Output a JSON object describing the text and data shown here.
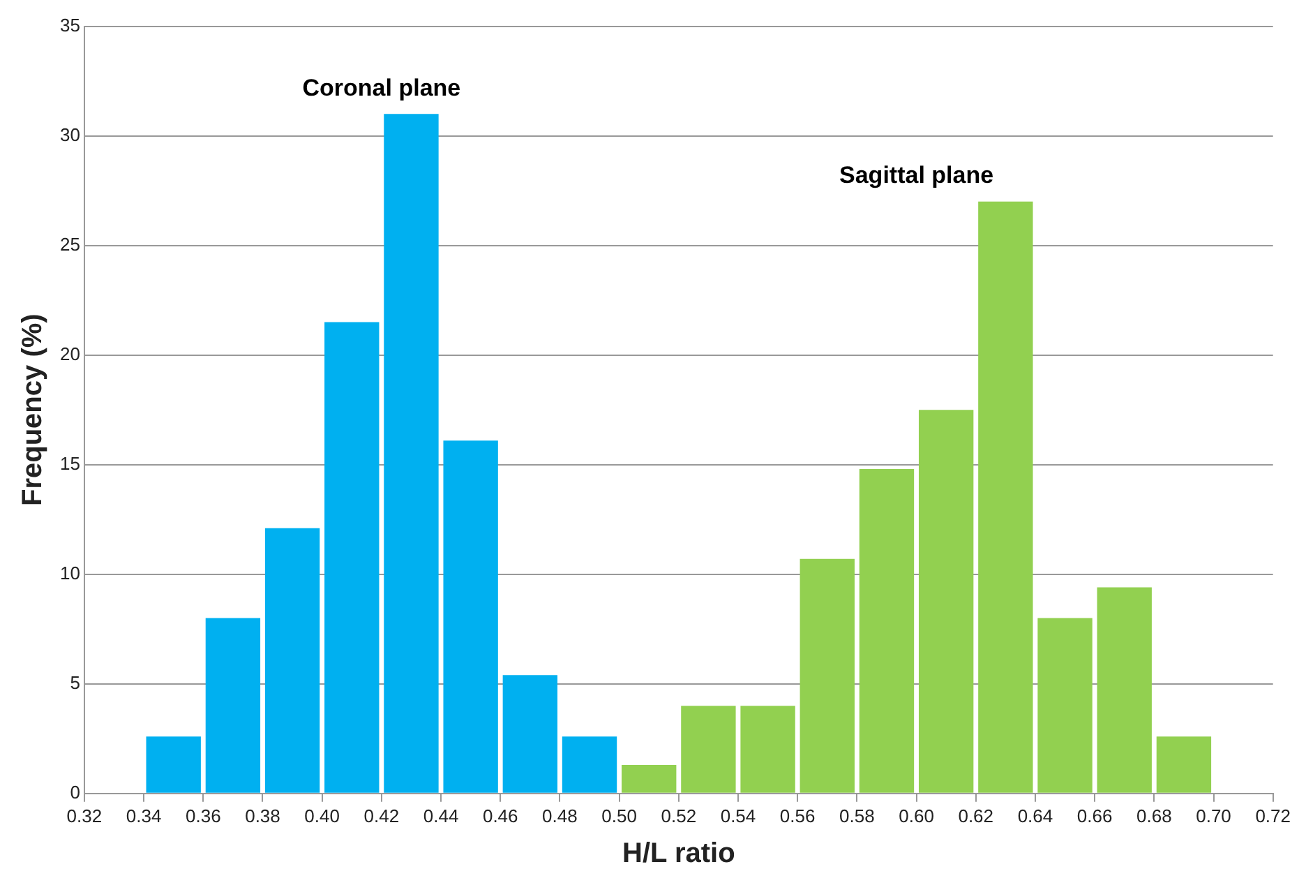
{
  "chart_data": {
    "type": "histogram",
    "xlabel": "H/L ratio",
    "ylabel": "Frequency (%)",
    "bins": [
      0.34,
      0.36,
      0.38,
      0.4,
      0.42,
      0.44,
      0.46,
      0.48,
      0.5,
      0.52,
      0.54,
      0.56,
      0.58,
      0.6,
      0.62,
      0.64,
      0.66,
      0.68,
      0.7
    ],
    "series": [
      {
        "name": "Coronal plane",
        "color": "#00b0f0",
        "values": [
          2.6,
          8.0,
          12.1,
          21.5,
          31.0,
          16.1,
          5.4,
          2.6,
          null,
          null,
          null,
          null,
          null,
          null,
          null,
          null,
          null,
          null
        ]
      },
      {
        "name": "Sagittal plane",
        "color": "#92d050",
        "values": [
          null,
          null,
          null,
          null,
          null,
          null,
          null,
          null,
          1.3,
          4.0,
          4.0,
          10.7,
          14.8,
          17.5,
          27.0,
          8.0,
          9.4,
          2.6
        ]
      }
    ],
    "xlim": [
      0.32,
      0.72
    ],
    "xticks": [
      0.32,
      0.34,
      0.36,
      0.38,
      {
        "value": 0.4,
        "label": "0.40"
      },
      0.42,
      0.44,
      0.46,
      0.48,
      {
        "value": 0.5,
        "label": "0.50"
      },
      0.52,
      0.54,
      0.56,
      0.58,
      {
        "value": 0.6,
        "label": "0.60"
      },
      0.62,
      0.64,
      0.66,
      0.68,
      {
        "value": 0.7,
        "label": "0.70"
      },
      0.72
    ],
    "ylim": [
      0,
      35
    ],
    "yticks": [
      0,
      5,
      10,
      15,
      20,
      25,
      30,
      35
    ],
    "grid": "y",
    "legend": false
  }
}
